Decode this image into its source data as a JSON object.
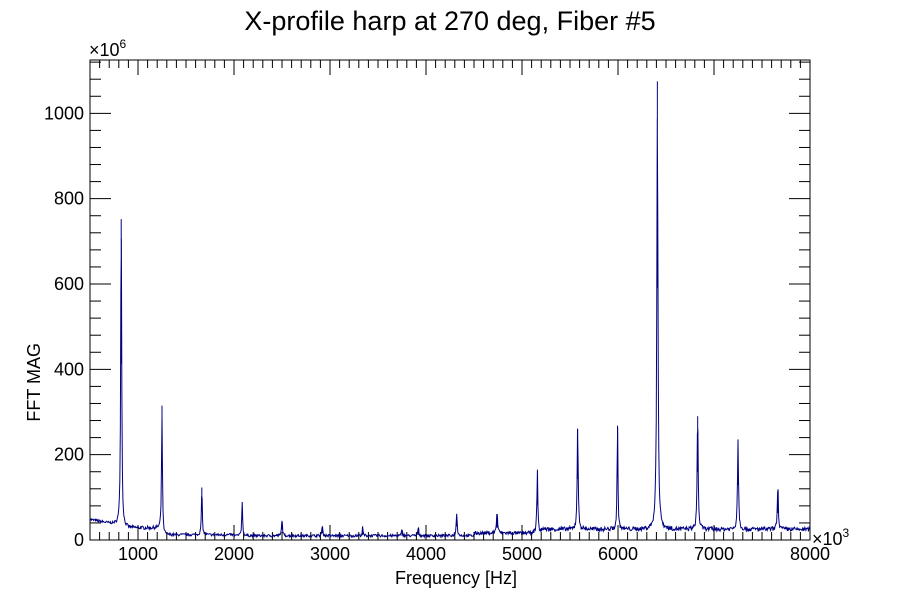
{
  "chart_data": {
    "type": "line",
    "title": "X-profile harp at 270 deg, Fiber #5",
    "xlabel": "Frequency [Hz]",
    "ylabel": "FFT MAG",
    "x_multiplier": "×10",
    "x_multiplier_exp": "3",
    "y_multiplier": "×10",
    "y_multiplier_exp": "6",
    "xlim": [
      500,
      8000
    ],
    "ylim": [
      0,
      1125
    ],
    "x_ticks": [
      1000,
      2000,
      3000,
      4000,
      5000,
      6000,
      7000,
      8000
    ],
    "x_tick_labels": [
      "1000",
      "2000",
      "3000",
      "4000",
      "5000",
      "6000",
      "7000",
      "8000"
    ],
    "y_ticks": [
      0,
      200,
      400,
      600,
      800,
      1000
    ],
    "y_tick_labels": [
      "0",
      "200",
      "400",
      "600",
      "800",
      "1000"
    ],
    "line_color": "#000080",
    "baseline_start": 48,
    "grid": false,
    "legend": "none",
    "peaks": [
      {
        "x": 825,
        "y": 752,
        "w": 6
      },
      {
        "x": 1250,
        "y": 315,
        "w": 5
      },
      {
        "x": 1665,
        "y": 123,
        "w": 5
      },
      {
        "x": 2085,
        "y": 88,
        "w": 5
      },
      {
        "x": 2500,
        "y": 45,
        "w": 5
      },
      {
        "x": 2920,
        "y": 28,
        "w": 5
      },
      {
        "x": 3340,
        "y": 20,
        "w": 5
      },
      {
        "x": 3750,
        "y": 18,
        "w": 5
      },
      {
        "x": 3920,
        "y": 22,
        "w": 5
      },
      {
        "x": 4320,
        "y": 58,
        "w": 6
      },
      {
        "x": 4740,
        "y": 52,
        "w": 7
      },
      {
        "x": 5160,
        "y": 150,
        "w": 6
      },
      {
        "x": 5580,
        "y": 260,
        "w": 6
      },
      {
        "x": 5995,
        "y": 268,
        "w": 5
      },
      {
        "x": 6410,
        "y": 1075,
        "w": 7
      },
      {
        "x": 6830,
        "y": 290,
        "w": 6
      },
      {
        "x": 7250,
        "y": 235,
        "w": 6
      },
      {
        "x": 7665,
        "y": 115,
        "w": 6
      }
    ]
  }
}
